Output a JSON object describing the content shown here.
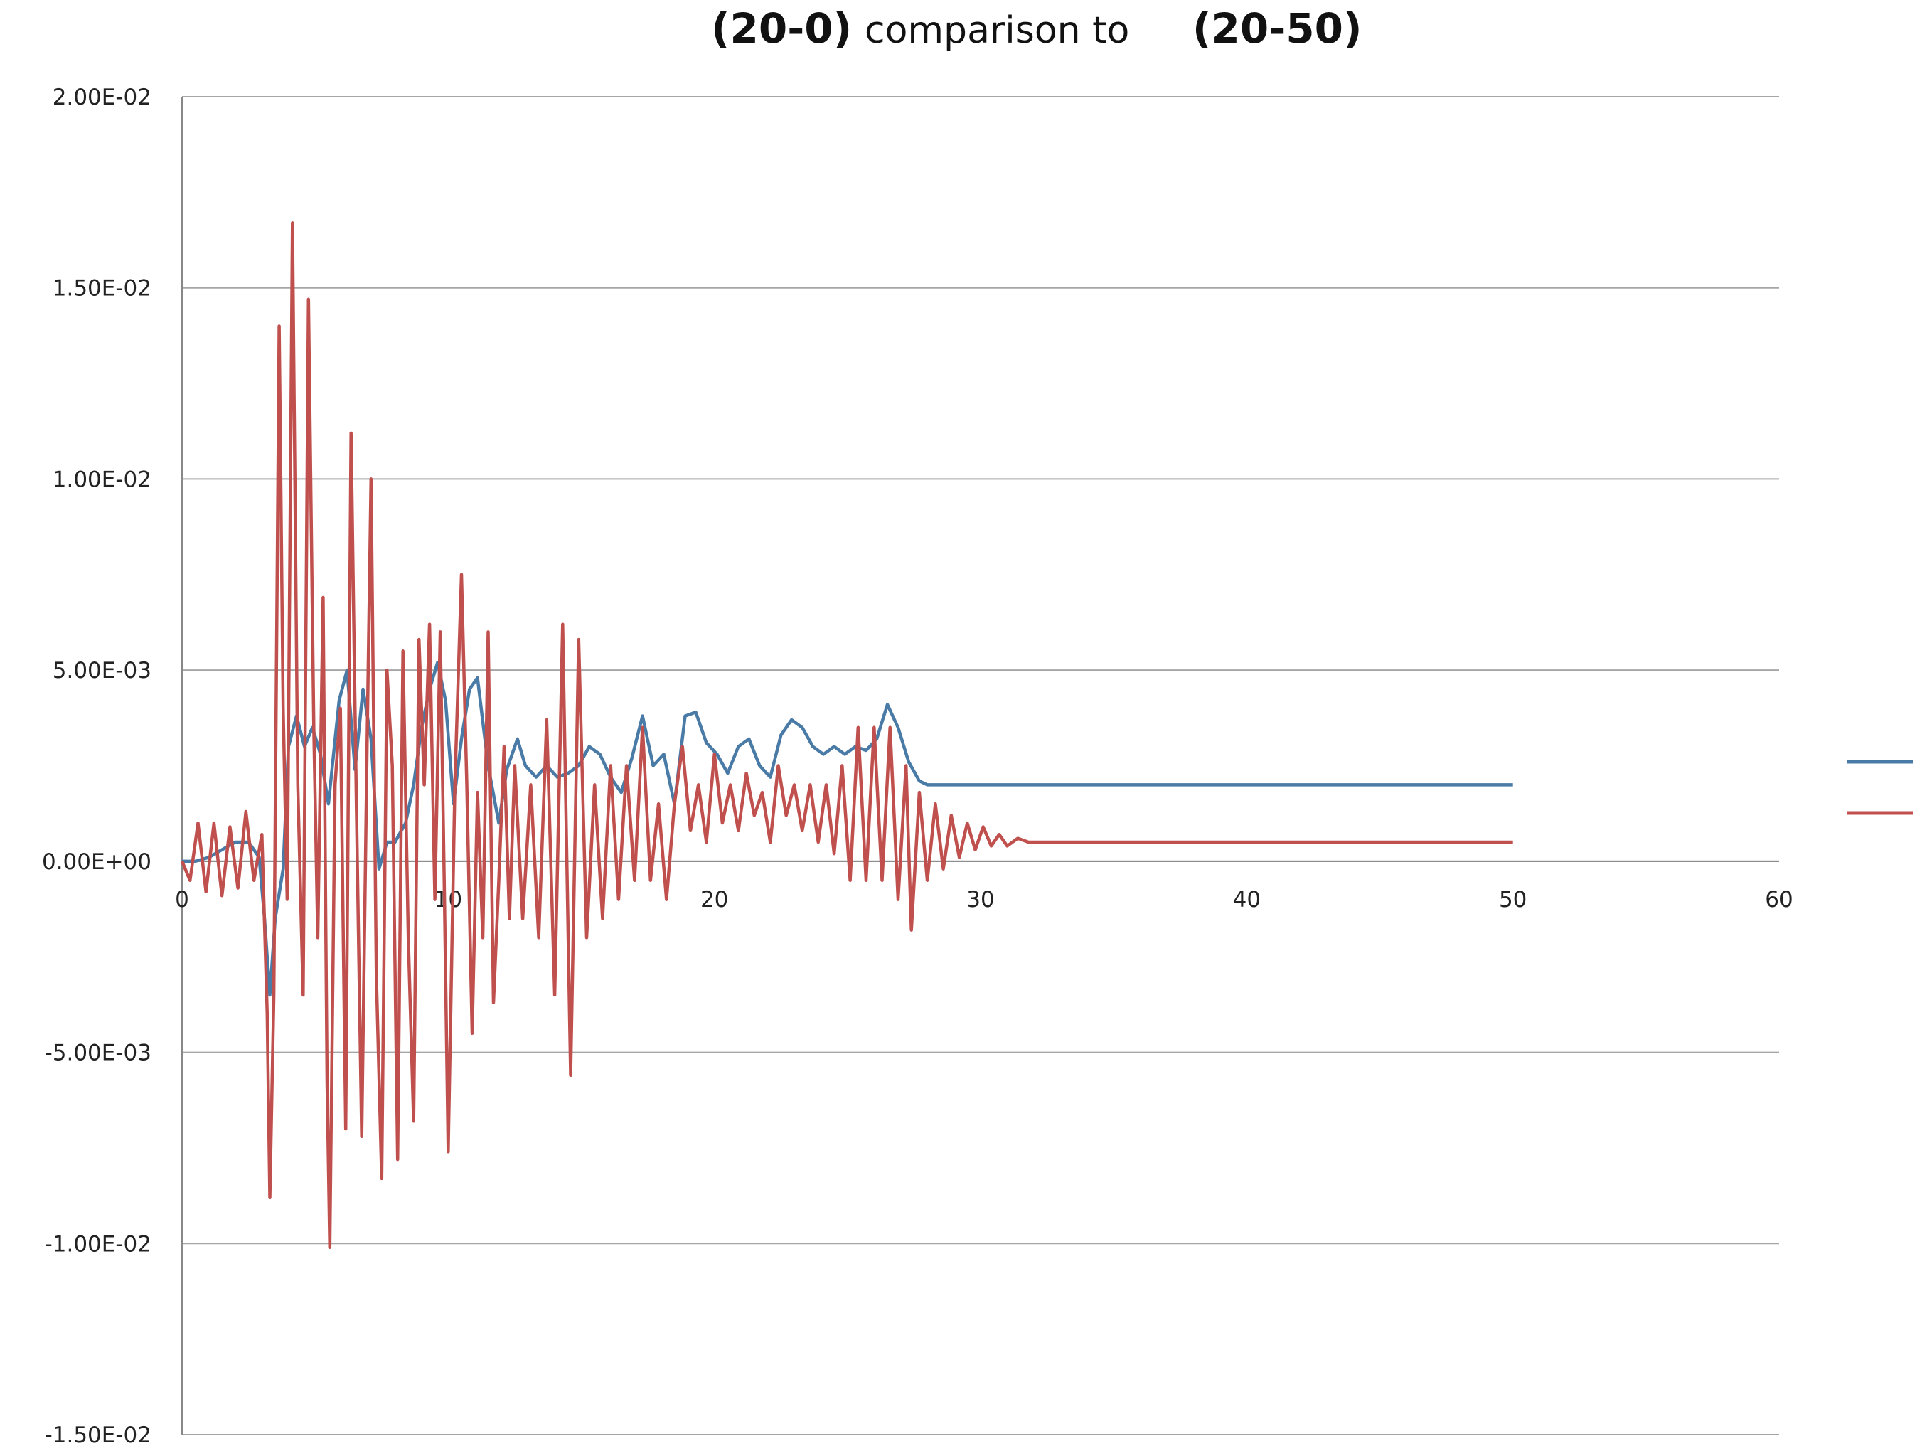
{
  "chart_data": {
    "type": "line",
    "title": {
      "part1": "(20-0)",
      "part2": "comparison to",
      "part3": "(20-50)"
    },
    "xlabel": "",
    "ylabel": "",
    "xlim": [
      0,
      60
    ],
    "ylim": [
      -0.015,
      0.02
    ],
    "x_ticks": [
      0,
      10,
      20,
      30,
      40,
      50,
      60
    ],
    "x_tick_labels": [
      "0",
      "10",
      "20",
      "30",
      "40",
      "50",
      "60"
    ],
    "y_ticks": [
      0.02,
      0.015,
      0.01,
      0.005,
      0,
      -0.005,
      -0.01,
      -0.015
    ],
    "y_tick_labels": [
      "2.00E-02",
      "1.50E-02",
      "1.00E-02",
      "5.00E-03",
      "0.00E+00",
      "-5.00E-03",
      "-1.00E-02",
      "-1.50E-02"
    ],
    "grid": "horizontal",
    "legend_position": "right",
    "series": [
      {
        "color": "#4a7ba6",
        "points": [
          [
            0,
            0
          ],
          [
            0.5,
            0
          ],
          [
            1,
            0.0001
          ],
          [
            1.5,
            0.0003
          ],
          [
            2,
            0.0005
          ],
          [
            2.5,
            0.0005
          ],
          [
            2.9,
            0.0001
          ],
          [
            3.1,
            -0.0015
          ],
          [
            3.3,
            -0.0035
          ],
          [
            3.5,
            -0.0015
          ],
          [
            3.8,
            -0.0002
          ],
          [
            4.0,
            0.003
          ],
          [
            4.3,
            0.0038
          ],
          [
            4.6,
            0.003
          ],
          [
            4.9,
            0.0035
          ],
          [
            5.2,
            0.0028
          ],
          [
            5.5,
            0.0015
          ],
          [
            5.9,
            0.0042
          ],
          [
            6.2,
            0.005
          ],
          [
            6.5,
            0.0024
          ],
          [
            6.8,
            0.0045
          ],
          [
            7.1,
            0.0032
          ],
          [
            7.4,
            -0.0002
          ],
          [
            7.7,
            0.0005
          ],
          [
            8.0,
            0.0005
          ],
          [
            8.4,
            0.001
          ],
          [
            8.7,
            0.002
          ],
          [
            9.0,
            0.0035
          ],
          [
            9.3,
            0.0045
          ],
          [
            9.6,
            0.0052
          ],
          [
            9.9,
            0.0042
          ],
          [
            10.2,
            0.0015
          ],
          [
            10.5,
            0.0032
          ],
          [
            10.8,
            0.0045
          ],
          [
            11.1,
            0.0048
          ],
          [
            11.5,
            0.0025
          ],
          [
            11.9,
            0.001
          ],
          [
            12.2,
            0.0024
          ],
          [
            12.6,
            0.0032
          ],
          [
            12.9,
            0.0025
          ],
          [
            13.3,
            0.0022
          ],
          [
            13.7,
            0.0025
          ],
          [
            14.1,
            0.0022
          ],
          [
            14.5,
            0.0023
          ],
          [
            14.9,
            0.0025
          ],
          [
            15.3,
            0.003
          ],
          [
            15.7,
            0.0028
          ],
          [
            16.1,
            0.0022
          ],
          [
            16.5,
            0.0018
          ],
          [
            16.9,
            0.0027
          ],
          [
            17.3,
            0.0038
          ],
          [
            17.7,
            0.0025
          ],
          [
            18.1,
            0.0028
          ],
          [
            18.5,
            0.0015
          ],
          [
            18.9,
            0.0038
          ],
          [
            19.3,
            0.0039
          ],
          [
            19.7,
            0.0031
          ],
          [
            20.1,
            0.0028
          ],
          [
            20.5,
            0.0023
          ],
          [
            20.9,
            0.003
          ],
          [
            21.3,
            0.0032
          ],
          [
            21.7,
            0.0025
          ],
          [
            22.1,
            0.0022
          ],
          [
            22.5,
            0.0033
          ],
          [
            22.9,
            0.0037
          ],
          [
            23.3,
            0.0035
          ],
          [
            23.7,
            0.003
          ],
          [
            24.1,
            0.0028
          ],
          [
            24.5,
            0.003
          ],
          [
            24.9,
            0.0028
          ],
          [
            25.3,
            0.003
          ],
          [
            25.7,
            0.0029
          ],
          [
            26.1,
            0.0032
          ],
          [
            26.5,
            0.0041
          ],
          [
            26.9,
            0.0035
          ],
          [
            27.3,
            0.0026
          ],
          [
            27.7,
            0.0021
          ],
          [
            28.0,
            0.002
          ],
          [
            50,
            0.002
          ]
        ]
      },
      {
        "color": "#c0504d",
        "points": [
          [
            0,
            0
          ],
          [
            0.3,
            -0.0005
          ],
          [
            0.6,
            0.001
          ],
          [
            0.9,
            -0.0008
          ],
          [
            1.2,
            0.001
          ],
          [
            1.5,
            -0.0009
          ],
          [
            1.8,
            0.0009
          ],
          [
            2.1,
            -0.0007
          ],
          [
            2.4,
            0.0013
          ],
          [
            2.7,
            -0.0005
          ],
          [
            3.0,
            0.0007
          ],
          [
            3.2,
            -0.004
          ],
          [
            3.3,
            -0.0088
          ],
          [
            3.45,
            -0.0035
          ],
          [
            3.65,
            0.014
          ],
          [
            3.8,
            0.004
          ],
          [
            3.95,
            -0.001
          ],
          [
            4.15,
            0.0167
          ],
          [
            4.35,
            0.002
          ],
          [
            4.55,
            -0.0035
          ],
          [
            4.75,
            0.0147
          ],
          [
            4.95,
            0.0035
          ],
          [
            5.1,
            -0.002
          ],
          [
            5.3,
            0.0069
          ],
          [
            5.45,
            -0.0058
          ],
          [
            5.55,
            -0.0101
          ],
          [
            5.75,
            0.002
          ],
          [
            5.95,
            0.004
          ],
          [
            6.15,
            -0.007
          ],
          [
            6.35,
            0.0112
          ],
          [
            6.55,
            0.0015
          ],
          [
            6.75,
            -0.0072
          ],
          [
            6.95,
            0.003
          ],
          [
            7.1,
            0.01
          ],
          [
            7.3,
            -0.003
          ],
          [
            7.5,
            -0.0083
          ],
          [
            7.7,
            0.005
          ],
          [
            7.9,
            0.0025
          ],
          [
            8.1,
            -0.0078
          ],
          [
            8.3,
            0.0055
          ],
          [
            8.5,
            -0.002
          ],
          [
            8.7,
            -0.0068
          ],
          [
            8.9,
            0.0058
          ],
          [
            9.1,
            0.002
          ],
          [
            9.3,
            0.0062
          ],
          [
            9.5,
            -0.001
          ],
          [
            9.7,
            0.006
          ],
          [
            9.85,
            -0.0005
          ],
          [
            10.0,
            -0.0076
          ],
          [
            10.25,
            0.002
          ],
          [
            10.5,
            0.0075
          ],
          [
            10.7,
            0.002
          ],
          [
            10.9,
            -0.0045
          ],
          [
            11.1,
            0.0018
          ],
          [
            11.3,
            -0.002
          ],
          [
            11.5,
            0.006
          ],
          [
            11.7,
            -0.0037
          ],
          [
            11.9,
            -0.0005
          ],
          [
            12.1,
            0.003
          ],
          [
            12.3,
            -0.0015
          ],
          [
            12.5,
            0.0025
          ],
          [
            12.8,
            -0.0015
          ],
          [
            13.1,
            0.002
          ],
          [
            13.4,
            -0.002
          ],
          [
            13.7,
            0.0037
          ],
          [
            14.0,
            -0.0035
          ],
          [
            14.3,
            0.0062
          ],
          [
            14.6,
            -0.0056
          ],
          [
            14.9,
            0.0058
          ],
          [
            15.2,
            -0.002
          ],
          [
            15.5,
            0.002
          ],
          [
            15.8,
            -0.0015
          ],
          [
            16.1,
            0.0025
          ],
          [
            16.4,
            -0.001
          ],
          [
            16.7,
            0.0025
          ],
          [
            17.0,
            -0.0005
          ],
          [
            17.3,
            0.0035
          ],
          [
            17.6,
            -0.0005
          ],
          [
            17.9,
            0.0015
          ],
          [
            18.2,
            -0.001
          ],
          [
            18.5,
            0.0015
          ],
          [
            18.8,
            0.003
          ],
          [
            19.1,
            0.0008
          ],
          [
            19.4,
            0.002
          ],
          [
            19.7,
            0.0005
          ],
          [
            20.0,
            0.0028
          ],
          [
            20.3,
            0.001
          ],
          [
            20.6,
            0.002
          ],
          [
            20.9,
            0.0008
          ],
          [
            21.2,
            0.0023
          ],
          [
            21.5,
            0.0012
          ],
          [
            21.8,
            0.0018
          ],
          [
            22.1,
            0.0005
          ],
          [
            22.4,
            0.0025
          ],
          [
            22.7,
            0.0012
          ],
          [
            23.0,
            0.002
          ],
          [
            23.3,
            0.0008
          ],
          [
            23.6,
            0.002
          ],
          [
            23.9,
            0.0005
          ],
          [
            24.2,
            0.002
          ],
          [
            24.5,
            0.0002
          ],
          [
            24.8,
            0.0025
          ],
          [
            25.1,
            -0.0005
          ],
          [
            25.4,
            0.0035
          ],
          [
            25.7,
            -0.0005
          ],
          [
            26.0,
            0.0035
          ],
          [
            26.3,
            -0.0005
          ],
          [
            26.6,
            0.0035
          ],
          [
            26.9,
            -0.001
          ],
          [
            27.2,
            0.0025
          ],
          [
            27.4,
            -0.0018
          ],
          [
            27.7,
            0.0018
          ],
          [
            28.0,
            -0.0005
          ],
          [
            28.3,
            0.0015
          ],
          [
            28.6,
            -0.0002
          ],
          [
            28.9,
            0.0012
          ],
          [
            29.2,
            0.0001
          ],
          [
            29.5,
            0.001
          ],
          [
            29.8,
            0.0003
          ],
          [
            30.1,
            0.0009
          ],
          [
            30.4,
            0.0004
          ],
          [
            30.7,
            0.0007
          ],
          [
            31.0,
            0.0004
          ],
          [
            31.4,
            0.0006
          ],
          [
            31.8,
            0.0005
          ],
          [
            32.5,
            0.0005
          ],
          [
            50,
            0.0005
          ]
        ]
      }
    ]
  }
}
